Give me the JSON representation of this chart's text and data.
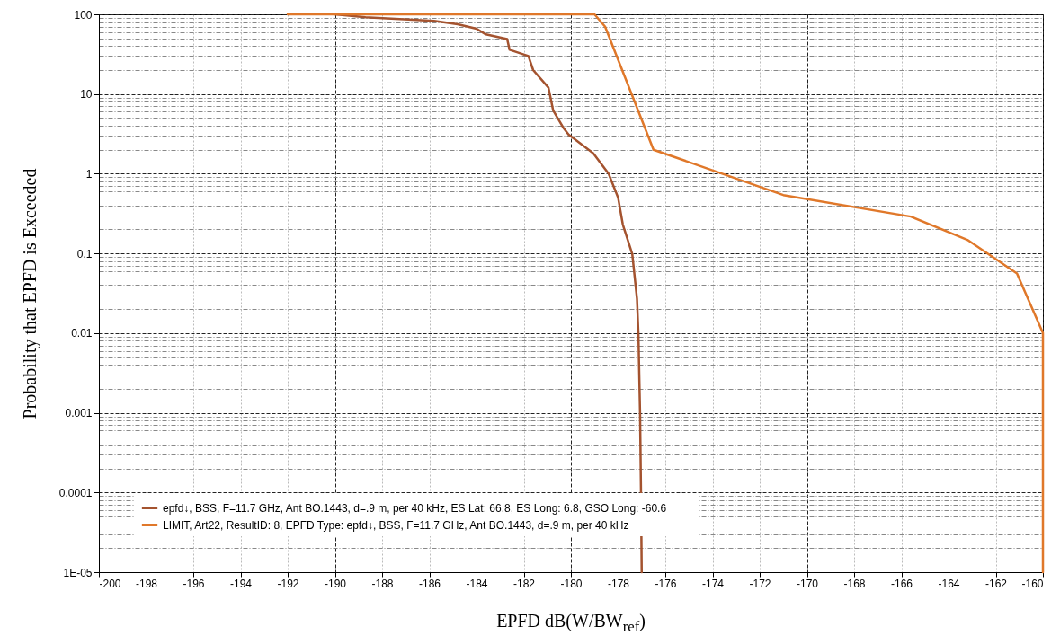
{
  "chart_data": {
    "type": "line",
    "xlabel": "EPFD dB(W/BW$_{ref}$)",
    "ylabel": "Probability that EPFD is Exceeded",
    "log": "y",
    "grid": true,
    "legend": "bottom left",
    "line_style": "solid",
    "marker": "none",
    "xlim": [
      -200,
      -160
    ],
    "xticks": [
      -200,
      -198,
      -196,
      -194,
      -192,
      -190,
      -188,
      -186,
      -184,
      -182,
      -180,
      -178,
      -176,
      -174,
      -172,
      -170,
      -168,
      -166,
      -164,
      -162,
      -160
    ],
    "ylim": [
      1e-05,
      100
    ],
    "yticks": [
      {
        "value": 1e-05,
        "label": "1E-05"
      },
      {
        "value": 2e-05,
        "label": null
      },
      {
        "value": 3e-05,
        "label": null
      },
      {
        "value": 4e-05,
        "label": null
      },
      {
        "value": 5e-05,
        "label": null
      },
      {
        "value": 6e-05,
        "label": null
      },
      {
        "value": 7e-05,
        "label": null
      },
      {
        "value": 8e-05,
        "label": null
      },
      {
        "value": 9e-05,
        "label": null
      },
      0.0001,
      {
        "value": 0.0002,
        "label": null
      },
      {
        "value": 0.0003,
        "label": null
      },
      {
        "value": 0.0004,
        "label": null
      },
      {
        "value": 0.0005,
        "label": null
      },
      {
        "value": 0.0006,
        "label": null
      },
      {
        "value": 0.0007,
        "label": null
      },
      {
        "value": 0.0008,
        "label": null
      },
      {
        "value": 0.0009,
        "label": null
      },
      0.001,
      {
        "value": 0.002,
        "label": null
      },
      {
        "value": 0.003,
        "label": null
      },
      {
        "value": 0.004,
        "label": null
      },
      {
        "value": 0.005,
        "label": null
      },
      {
        "value": 0.006,
        "label": null
      },
      {
        "value": 0.007,
        "label": null
      },
      {
        "value": 0.008,
        "label": null
      },
      {
        "value": 0.009,
        "label": null
      },
      0.01,
      {
        "value": 0.02,
        "label": null
      },
      {
        "value": 0.03,
        "label": null
      },
      {
        "value": 0.04,
        "label": null
      },
      {
        "value": 0.05,
        "label": null
      },
      {
        "value": 0.06,
        "label": null
      },
      {
        "value": 0.07,
        "label": null
      },
      {
        "value": 0.08,
        "label": null
      },
      {
        "value": 0.09,
        "label": null
      },
      0.1,
      {
        "value": 0.2,
        "label": null
      },
      {
        "value": 0.3,
        "label": null
      },
      {
        "value": 0.4,
        "label": null
      },
      {
        "value": 0.5,
        "label": null
      },
      {
        "value": 0.6,
        "label": null
      },
      {
        "value": 0.7,
        "label": null
      },
      {
        "value": 0.8,
        "label": null
      },
      {
        "value": 0.9,
        "label": null
      },
      1,
      {
        "value": 2,
        "label": null
      },
      {
        "value": 3,
        "label": null
      },
      {
        "value": 4,
        "label": null
      },
      {
        "value": 5,
        "label": null
      },
      {
        "value": 6,
        "label": null
      },
      {
        "value": 7,
        "label": null
      },
      {
        "value": 8,
        "label": null
      },
      {
        "value": 9,
        "label": null
      },
      10,
      {
        "value": 20,
        "label": null
      },
      {
        "value": 30,
        "label": null
      },
      {
        "value": 40,
        "label": null
      },
      {
        "value": 50,
        "label": null
      },
      {
        "value": 60,
        "label": null
      },
      {
        "value": 70,
        "label": null
      },
      {
        "value": 80,
        "label": null
      },
      {
        "value": 90,
        "label": null
      },
      100
    ],
    "series": [
      {
        "name": "epfd↓, BSS, F=11.7 GHz, Ant BO.1443, d=.9 m, per 40 kHz,    ES Lat: 66.8,    ES Long: 6.8,    GSO Long: -60.6",
        "color": "#a4532f",
        "x": [
          -190,
          -188.7,
          -185.8,
          -184.8,
          -184,
          -183.6,
          -182.7,
          -182.6,
          -181.8,
          -181.6,
          -180.95,
          -180.75,
          -180.3,
          -180.1,
          -179.05,
          -178.4,
          -178,
          -177.8,
          -177.4,
          -177.2,
          -177.14,
          -177.07,
          -177.03,
          -177
        ],
        "values": [
          100,
          92,
          83,
          75,
          66,
          56,
          49,
          36,
          30,
          20,
          12,
          6.2,
          3.7,
          3.1,
          1.8,
          1,
          0.5,
          0.23,
          0.098,
          0.027,
          0.01,
          0.001,
          0.0001,
          1e-05
        ]
      },
      {
        "name": "LIMIT, Art22, ResultID: 8, EPFD Type: epfd↓, BSS, F=11.7 GHz, Ant BO.1443, d=.9 m, per 40 kHz",
        "color": "#e0782a",
        "x": [
          -192,
          -179,
          -178.55,
          -176.5,
          -171,
          -165.6,
          -163.2,
          -161.1,
          -160,
          -160
        ],
        "values": [
          100,
          100,
          70,
          2,
          0.54,
          0.29,
          0.148,
          0.056,
          0.01,
          1e-05
        ]
      }
    ]
  }
}
